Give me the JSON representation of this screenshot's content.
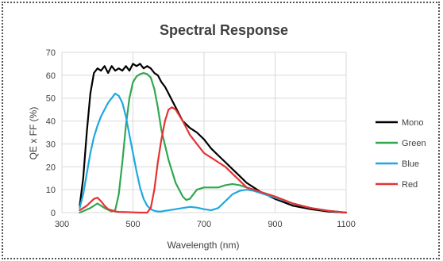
{
  "chart_data": {
    "type": "line",
    "title": "Spectral Response",
    "xlabel": "Wavelength (nm)",
    "ylabel": "QE x FF (%)",
    "xlim": [
      300,
      1100
    ],
    "ylim": [
      0,
      70
    ],
    "xticks": [
      300,
      500,
      700,
      900,
      1100
    ],
    "yticks": [
      0,
      10,
      20,
      30,
      40,
      50,
      60,
      70
    ],
    "grid": true,
    "legend_position": "right",
    "series": [
      {
        "name": "Mono",
        "color": "#000000",
        "x": [
          350,
          360,
          370,
          380,
          390,
          400,
          410,
          420,
          430,
          440,
          450,
          460,
          470,
          480,
          490,
          500,
          510,
          520,
          530,
          540,
          550,
          560,
          570,
          580,
          590,
          600,
          620,
          640,
          660,
          680,
          700,
          720,
          740,
          760,
          780,
          800,
          820,
          840,
          860,
          880,
          900,
          950,
          1000,
          1050,
          1100
        ],
        "y": [
          3,
          15,
          35,
          52,
          61,
          63,
          62,
          64,
          61,
          64,
          62,
          63,
          62,
          64,
          62,
          65,
          64,
          65,
          63,
          64,
          63,
          61,
          60,
          57,
          55,
          52,
          46,
          40,
          37,
          35,
          32,
          28,
          25,
          22,
          19,
          16,
          13,
          11,
          9,
          7.5,
          6,
          3,
          1.5,
          0.5,
          0
        ]
      },
      {
        "name": "Green",
        "color": "#2fa84f",
        "x": [
          350,
          380,
          400,
          420,
          440,
          450,
          460,
          470,
          480,
          490,
          500,
          510,
          520,
          530,
          540,
          550,
          560,
          570,
          580,
          600,
          620,
          640,
          650,
          660,
          680,
          700,
          720,
          740,
          760,
          780,
          800,
          820,
          840,
          860,
          880,
          900,
          950,
          1000,
          1050,
          1100
        ],
        "y": [
          0,
          2,
          4,
          2,
          0.5,
          1,
          8,
          22,
          38,
          50,
          57,
          59.5,
          60.5,
          61,
          60.5,
          59,
          54,
          46,
          36,
          23,
          13,
          7,
          5.5,
          6,
          10,
          11,
          11,
          11,
          12,
          12.5,
          12,
          11,
          10,
          9,
          8,
          7,
          4,
          2,
          0.8,
          0
        ]
      },
      {
        "name": "Blue",
        "color": "#1fa8e0",
        "x": [
          350,
          360,
          370,
          380,
          390,
          400,
          410,
          420,
          430,
          440,
          450,
          460,
          470,
          480,
          490,
          500,
          510,
          520,
          530,
          540,
          550,
          560,
          570,
          580,
          590,
          600,
          620,
          640,
          660,
          680,
          700,
          720,
          740,
          760,
          780,
          800,
          820,
          840,
          860,
          880,
          900,
          950,
          1000,
          1050,
          1100
        ],
        "y": [
          2,
          8,
          17,
          26,
          33,
          38,
          42,
          45,
          48,
          50,
          52,
          51,
          48,
          42,
          34,
          26,
          18,
          11,
          6,
          3,
          1.5,
          0.8,
          0.5,
          0.5,
          0.8,
          1,
          1.5,
          2,
          2.5,
          2.2,
          1.5,
          1,
          2,
          5,
          8,
          9.5,
          10,
          9.5,
          8.5,
          7.5,
          6.5,
          4,
          2,
          0.8,
          0
        ]
      },
      {
        "name": "Red",
        "color": "#e63232",
        "x": [
          350,
          370,
          390,
          400,
          410,
          420,
          430,
          440,
          450,
          460,
          480,
          500,
          520,
          540,
          550,
          560,
          570,
          580,
          590,
          600,
          610,
          620,
          640,
          660,
          680,
          700,
          720,
          740,
          760,
          780,
          800,
          820,
          840,
          860,
          880,
          900,
          950,
          1000,
          1050,
          1100
        ],
        "y": [
          1,
          3,
          6,
          6.5,
          5,
          3,
          1.5,
          1,
          0.5,
          0.3,
          0.2,
          0.1,
          0,
          0,
          2,
          10,
          22,
          32,
          40,
          45,
          46,
          45,
          40,
          34,
          30,
          26,
          24,
          22,
          20,
          17,
          14,
          11,
          10,
          9,
          8,
          7,
          4,
          2,
          0.8,
          0
        ]
      }
    ]
  }
}
